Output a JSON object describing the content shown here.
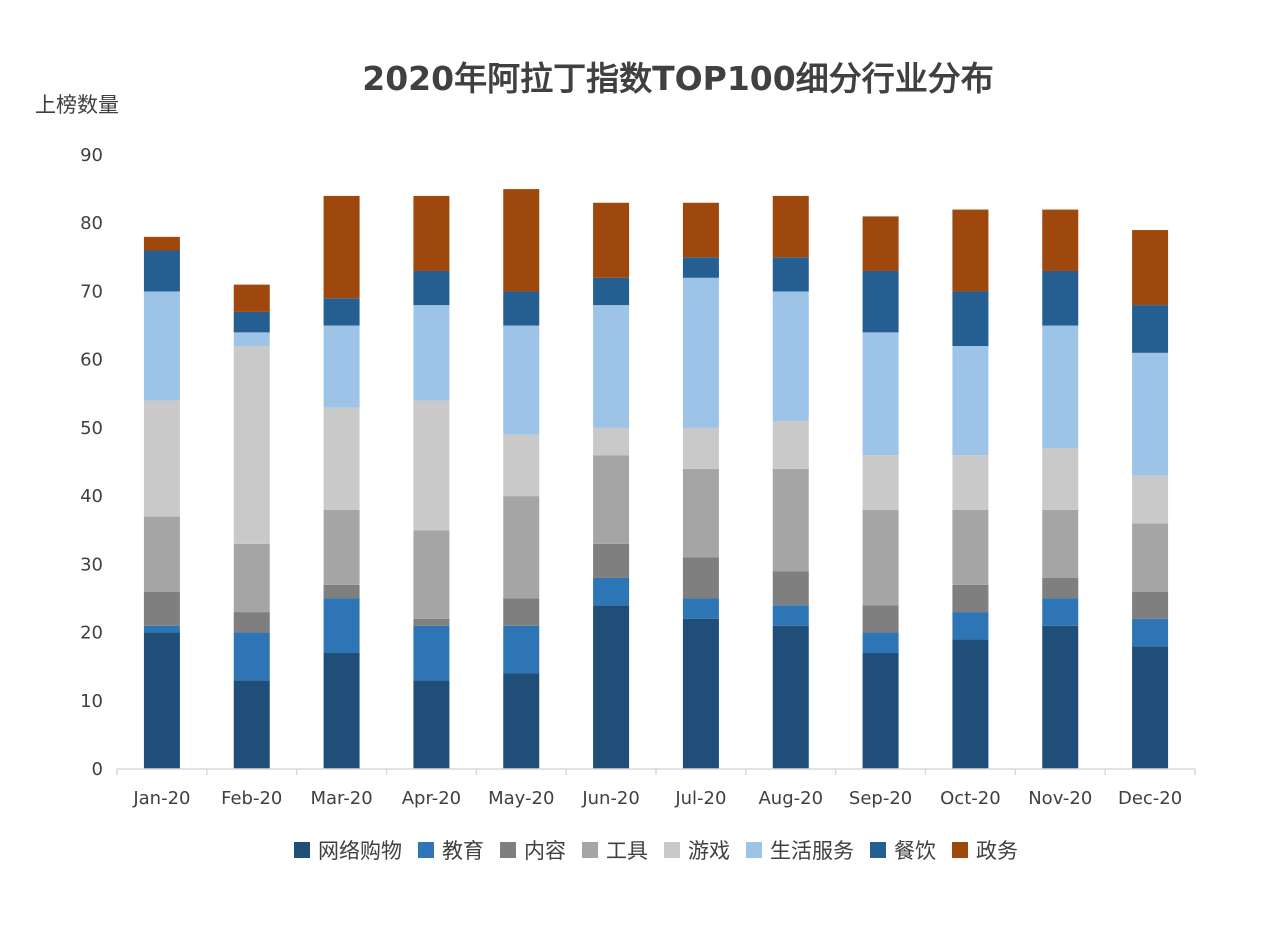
{
  "chart_data": {
    "type": "bar",
    "stacked": true,
    "title": "2020年阿拉丁指数TOP100细分行业分布",
    "xlabel": "",
    "ylabel": "上榜数量",
    "ylim": [
      0,
      90
    ],
    "yticks": [
      0,
      10,
      20,
      30,
      40,
      50,
      60,
      70,
      80,
      90
    ],
    "grid": false,
    "legend_position": "bottom",
    "categories": [
      "Jan-20",
      "Feb-20",
      "Mar-20",
      "Apr-20",
      "May-20",
      "Jun-20",
      "Jul-20",
      "Aug-20",
      "Sep-20",
      "Oct-20",
      "Nov-20",
      "Dec-20"
    ],
    "series": [
      {
        "name": "网络购物",
        "color": "#1f4e79",
        "values": [
          20,
          13,
          17,
          13,
          14,
          24,
          22,
          21,
          17,
          19,
          21,
          18
        ]
      },
      {
        "name": "教育",
        "color": "#2e75b6",
        "values": [
          1,
          7,
          8,
          8,
          7,
          4,
          3,
          3,
          3,
          4,
          4,
          4
        ]
      },
      {
        "name": "内容",
        "color": "#7f7f7f",
        "values": [
          5,
          3,
          2,
          1,
          4,
          5,
          6,
          5,
          4,
          4,
          3,
          4
        ]
      },
      {
        "name": "工具",
        "color": "#a5a5a5",
        "values": [
          11,
          10,
          11,
          13,
          15,
          13,
          13,
          15,
          14,
          11,
          10,
          10
        ]
      },
      {
        "name": "游戏",
        "color": "#c9c9c9",
        "values": [
          17,
          29,
          15,
          19,
          9,
          4,
          6,
          7,
          8,
          8,
          9,
          7
        ]
      },
      {
        "name": "生活服务",
        "color": "#9dc3e6",
        "values": [
          16,
          2,
          12,
          14,
          16,
          18,
          22,
          19,
          18,
          16,
          18,
          18
        ]
      },
      {
        "name": "餐饮",
        "color": "#255e91",
        "values": [
          6,
          3,
          4,
          5,
          5,
          4,
          3,
          5,
          9,
          8,
          8,
          7
        ]
      },
      {
        "name": "政务",
        "color": "#9e480e",
        "values": [
          2,
          4,
          15,
          11,
          15,
          11,
          8,
          9,
          8,
          12,
          9,
          11
        ]
      }
    ]
  }
}
